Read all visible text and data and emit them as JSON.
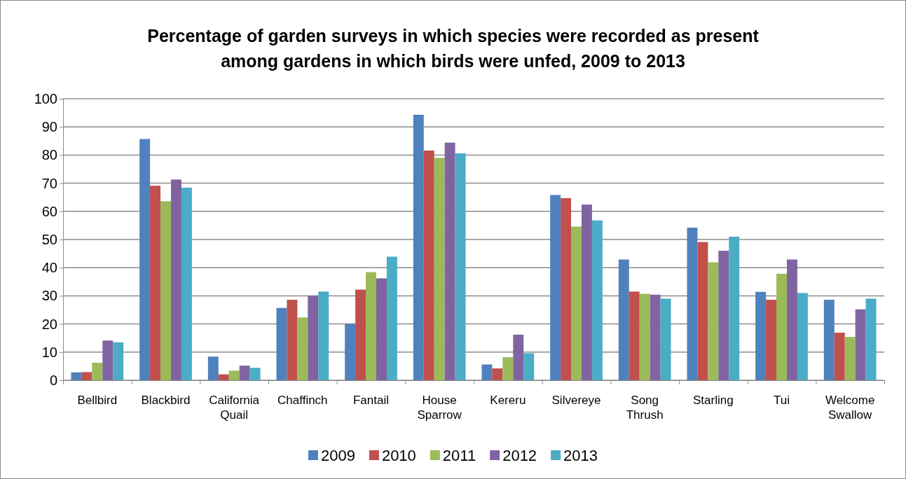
{
  "chart_data": {
    "type": "bar",
    "title": "Percentage of garden surveys in which species were recorded as present among gardens in which birds were unfed, 2009 to 2013",
    "categories": [
      "Bellbird",
      "Blackbird",
      "California Quail",
      "Chaffinch",
      "Fantail",
      "House Sparrow",
      "Kereru",
      "Silvereye",
      "Song Thrush",
      "Starling",
      "Tui",
      "Welcome Swallow"
    ],
    "series": [
      {
        "name": "2009",
        "color": "#4f81bd",
        "values": [
          2.8,
          85.7,
          8.4,
          25.7,
          20,
          94.3,
          5.6,
          65.8,
          42.9,
          54.2,
          31.4,
          28.6
        ]
      },
      {
        "name": "2010",
        "color": "#c0504d",
        "values": [
          2.9,
          69.1,
          2.1,
          28.6,
          32.2,
          81.6,
          4.2,
          64.7,
          31.5,
          49.1,
          28.6,
          16.9
        ]
      },
      {
        "name": "2011",
        "color": "#9bbb59",
        "values": [
          6.2,
          63.6,
          3.4,
          22.3,
          38.4,
          79,
          8.2,
          54.6,
          30.7,
          41.9,
          37.8,
          15.4
        ]
      },
      {
        "name": "2012",
        "color": "#8064a2",
        "values": [
          14.1,
          71.3,
          5.2,
          30.1,
          36.2,
          84.4,
          16.2,
          62.4,
          30.4,
          46,
          42.9,
          25.2
        ]
      },
      {
        "name": "2013",
        "color": "#4bacc6",
        "values": [
          13.5,
          68.4,
          4.4,
          31.5,
          43.9,
          80.6,
          9.6,
          56.8,
          29,
          51,
          31,
          29
        ]
      }
    ],
    "ylim": [
      0,
      100
    ],
    "yticks": [
      0,
      10,
      20,
      30,
      40,
      50,
      60,
      70,
      80,
      90,
      100
    ],
    "grid": "y",
    "legend": "bottom"
  }
}
